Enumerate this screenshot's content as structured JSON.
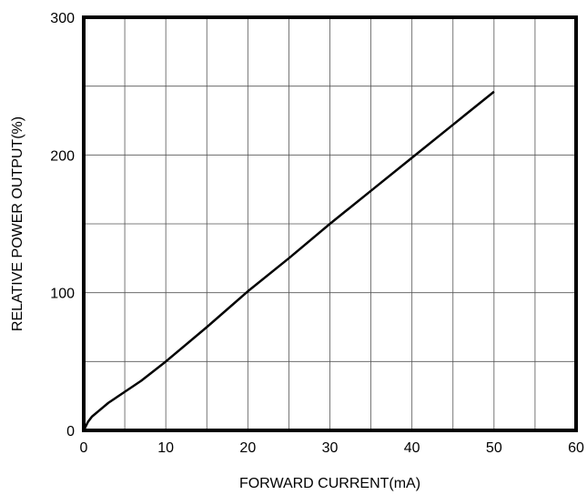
{
  "chart_data": {
    "type": "line",
    "title": "",
    "xlabel": "FORWARD CURRENT(mA)",
    "ylabel": "RELATIVE POWER OUTPUT(%)",
    "xlim": [
      0,
      60
    ],
    "ylim": [
      0,
      300
    ],
    "x_ticks": [
      0,
      10,
      20,
      30,
      40,
      50,
      60
    ],
    "y_ticks": [
      0,
      100,
      200,
      300
    ],
    "x_tick_labels": [
      "0",
      "10",
      "20",
      "30",
      "40",
      "50",
      "60"
    ],
    "y_tick_labels": [
      "0",
      "100",
      "200",
      "300"
    ],
    "grid": true,
    "x_grid_step": 5,
    "y_grid_step": 50,
    "series": [
      {
        "color": "#000000",
        "x": [
          0,
          0.5,
          1,
          2,
          3,
          5,
          7,
          10,
          15,
          20,
          25,
          30,
          35,
          40,
          45,
          50
        ],
        "y": [
          0,
          6,
          10,
          15,
          20,
          28,
          36,
          50,
          75,
          101,
          125,
          150,
          174,
          198,
          222,
          246
        ]
      }
    ]
  }
}
